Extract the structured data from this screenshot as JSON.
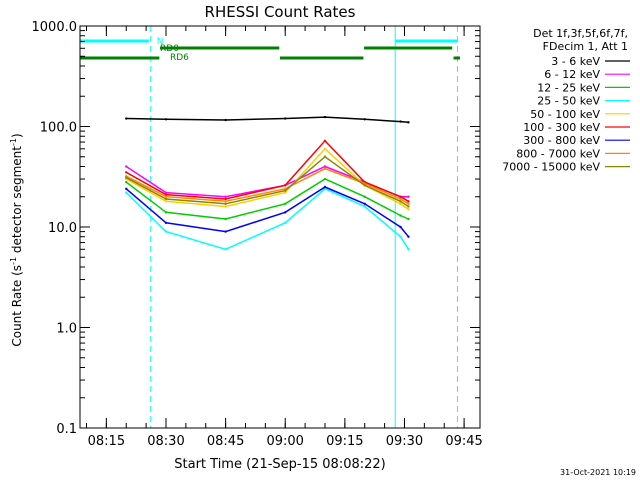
{
  "chart_data": {
    "type": "line",
    "title": "RHESSI Count Rates",
    "xlabel": "Start Time (21-Sep-15 08:08:22)",
    "ylabel_main": "Count Rate (s",
    "ylabel_sup": "-1",
    "ylabel_rest": " detector segment",
    "ylabel_sup2": "-1",
    "ylabel_close": ")",
    "yscale": "log",
    "ylim": [
      0.1,
      1000
    ],
    "xlim": [
      "08:08:22",
      "09:49:00"
    ],
    "x_ticks": [
      "08:15",
      "08:30",
      "08:45",
      "09:00",
      "09:15",
      "09:30",
      "09:45"
    ],
    "y_ticks": [
      "0.1",
      "1.0",
      "10.0",
      "100.0",
      "1000.0"
    ],
    "legend_header": [
      "Det 1f,3f,5f,6f,7f,",
      "FDecim 1, Att 1"
    ],
    "legend_position": "right",
    "series": [
      {
        "name": "3 - 6 keV",
        "color": "#000000",
        "x": [
          "08:20",
          "08:30",
          "08:45",
          "09:00",
          "09:10",
          "09:20",
          "09:29",
          "09:31"
        ],
        "values": [
          120,
          118,
          116,
          120,
          124,
          118,
          112,
          110
        ]
      },
      {
        "name": "6 - 12 keV",
        "color": "#ff00ff",
        "x": [
          "08:20",
          "08:30",
          "08:45",
          "09:00",
          "09:10",
          "09:20",
          "09:29",
          "09:31"
        ],
        "values": [
          40,
          22,
          20,
          26,
          40,
          28,
          20,
          20
        ]
      },
      {
        "name": "12 - 25 keV",
        "color": "#00cc00",
        "x": [
          "08:20",
          "08:30",
          "08:45",
          "09:00",
          "09:10",
          "09:20",
          "09:29",
          "09:31"
        ],
        "values": [
          28,
          14,
          12,
          17,
          30,
          20,
          13,
          12
        ]
      },
      {
        "name": "25 - 50 keV",
        "color": "#00ffff",
        "x": [
          "08:20",
          "08:30",
          "08:45",
          "09:00",
          "09:10",
          "09:20",
          "09:29",
          "09:31"
        ],
        "values": [
          22,
          9,
          6,
          11,
          24,
          16,
          8,
          6
        ]
      },
      {
        "name": "50 - 100 keV",
        "color": "#ffcc00",
        "x": [
          "08:20",
          "08:30",
          "08:45",
          "09:00",
          "09:10",
          "09:20",
          "09:29",
          "09:31"
        ],
        "values": [
          30,
          18,
          16,
          22,
          60,
          26,
          17,
          15
        ]
      },
      {
        "name": "100 - 300 keV",
        "color": "#ff0000",
        "x": [
          "08:20",
          "08:30",
          "08:45",
          "09:00",
          "09:10",
          "09:20",
          "09:29",
          "09:31"
        ],
        "values": [
          35,
          21,
          19,
          26,
          72,
          28,
          20,
          18
        ]
      },
      {
        "name": "300 - 800 keV",
        "color": "#0000ff",
        "x": [
          "08:20",
          "08:30",
          "08:45",
          "09:00",
          "09:10",
          "09:20",
          "09:29",
          "09:31"
        ],
        "values": [
          24,
          11,
          9,
          14,
          25,
          17,
          10,
          8
        ]
      },
      {
        "name": "800 - 7000 keV",
        "color": "#ff8800",
        "x": [
          "08:20",
          "08:30",
          "08:45",
          "09:00",
          "09:10",
          "09:20",
          "09:29",
          "09:31"
        ],
        "values": [
          32,
          20,
          18,
          24,
          38,
          27,
          19,
          17
        ]
      },
      {
        "name": "7000 - 15000 keV",
        "color": "#888800",
        "x": [
          "08:20",
          "08:30",
          "08:45",
          "09:00",
          "09:10",
          "09:20",
          "09:29",
          "09:31"
        ],
        "values": [
          31,
          19,
          17,
          23,
          50,
          26,
          18,
          16
        ]
      }
    ],
    "annotations": {
      "n_label": "N",
      "rd0_label": "RD0",
      "rd6_label": "RD6",
      "saa_color": "#00ffff",
      "rd_color": "#008000"
    },
    "vlines_solid": [
      "08:08:22",
      "09:27:40"
    ],
    "vlines_dashed": [
      "08:26:10",
      "09:43:20"
    ],
    "timestamp": "31-Oct-2021 10:19"
  }
}
